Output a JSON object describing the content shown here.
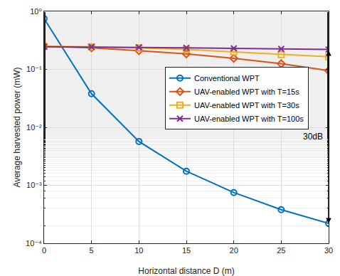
{
  "chart_data": {
    "type": "line",
    "x_label": "Horizontal distance D (m)",
    "y_label": "Average harvested power (mW)",
    "x": [
      0,
      5,
      10,
      15,
      20,
      25,
      30
    ],
    "series": [
      {
        "name": "Conventional WPT",
        "color": "#0072BD",
        "marker": "circle-open",
        "values": [
          0.75,
          0.038,
          0.0057,
          0.00175,
          0.00075,
          0.00038,
          0.00022
        ]
      },
      {
        "name": "UAV-enabled WPT with T=15s",
        "color": "#D95319",
        "marker": "diamond-open",
        "values": [
          0.25,
          0.235,
          0.21,
          0.185,
          0.155,
          0.125,
          0.095
        ]
      },
      {
        "name": "UAV-enabled WPT with T=30s",
        "color": "#EDB120",
        "marker": "square-open",
        "values": [
          0.25,
          0.245,
          0.235,
          0.22,
          0.2,
          0.18,
          0.165
        ]
      },
      {
        "name": "UAV-enabled WPT with T=100s",
        "color": "#7E2F8E",
        "marker": "x-thin-open",
        "values": [
          0.245,
          0.243,
          0.24,
          0.235,
          0.23,
          0.225,
          0.22
        ]
      }
    ],
    "xlim": [
      0,
      30
    ],
    "xticks": [
      0,
      5,
      10,
      15,
      20,
      25,
      30
    ],
    "ylim": [
      0.0001,
      1
    ],
    "yticks": [
      {
        "value": 0.0001,
        "label": "10⁻⁴"
      },
      {
        "value": 0.001,
        "label": "10⁻³"
      },
      {
        "value": 0.01,
        "label": "10⁻²"
      },
      {
        "value": 0.1,
        "label": "10⁻¹"
      },
      {
        "value": 1,
        "label": "10⁰"
      }
    ],
    "log": "y",
    "grid": true,
    "legend": "upper right",
    "annotations": [
      {
        "text": "30dB",
        "x": 30,
        "y_from": 0.22,
        "y_to": 0.00022
      }
    ]
  }
}
